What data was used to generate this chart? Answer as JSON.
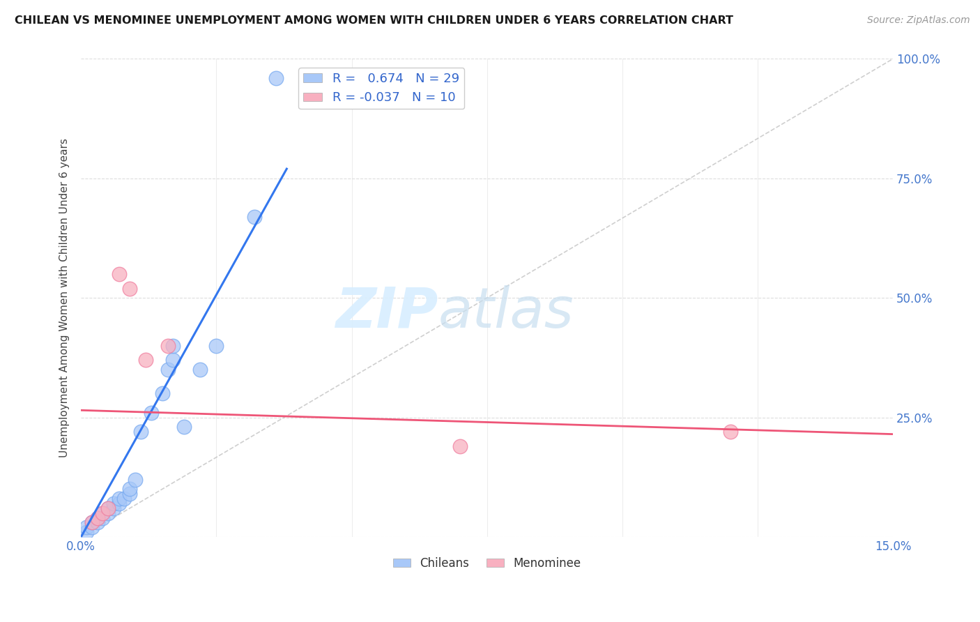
{
  "title": "CHILEAN VS MENOMINEE UNEMPLOYMENT AMONG WOMEN WITH CHILDREN UNDER 6 YEARS CORRELATION CHART",
  "source": "Source: ZipAtlas.com",
  "ylabel": "Unemployment Among Women with Children Under 6 years",
  "xlim": [
    0.0,
    0.15
  ],
  "ylim": [
    0.0,
    1.0
  ],
  "xticks": [
    0.0,
    0.025,
    0.05,
    0.075,
    0.1,
    0.125,
    0.15
  ],
  "xtick_labels": [
    "0.0%",
    "",
    "",
    "",
    "",
    "",
    "15.0%"
  ],
  "yticks": [
    0.0,
    0.25,
    0.5,
    0.75,
    1.0
  ],
  "ytick_labels_left": [
    "",
    "",
    "",
    "",
    ""
  ],
  "ytick_labels_right": [
    "",
    "25.0%",
    "50.0%",
    "75.0%",
    "100.0%"
  ],
  "chilean_r": 0.674,
  "chilean_n": 29,
  "menominee_r": -0.037,
  "menominee_n": 10,
  "chilean_color": "#a8c8f8",
  "menominee_color": "#f8b0c0",
  "chilean_edge_color": "#7aabf0",
  "menominee_edge_color": "#f080a0",
  "chilean_line_color": "#3377ee",
  "menominee_line_color": "#ee5577",
  "diag_color": "#bbbbbb",
  "grid_color": "#dddddd",
  "watermark": "ZIPatlas",
  "watermark_color": "#d8eeff",
  "chilean_x": [
    0.001,
    0.001,
    0.002,
    0.002,
    0.003,
    0.003,
    0.004,
    0.004,
    0.005,
    0.005,
    0.006,
    0.006,
    0.007,
    0.007,
    0.008,
    0.009,
    0.009,
    0.01,
    0.011,
    0.013,
    0.015,
    0.016,
    0.017,
    0.017,
    0.019,
    0.022,
    0.025,
    0.032,
    0.036
  ],
  "chilean_y": [
    0.01,
    0.02,
    0.02,
    0.03,
    0.03,
    0.04,
    0.04,
    0.05,
    0.05,
    0.06,
    0.06,
    0.07,
    0.07,
    0.08,
    0.08,
    0.09,
    0.1,
    0.12,
    0.22,
    0.26,
    0.3,
    0.35,
    0.37,
    0.4,
    0.23,
    0.35,
    0.4,
    0.67,
    0.96
  ],
  "menominee_x": [
    0.002,
    0.003,
    0.004,
    0.005,
    0.007,
    0.009,
    0.012,
    0.016,
    0.07,
    0.12
  ],
  "menominee_y": [
    0.03,
    0.04,
    0.05,
    0.06,
    0.55,
    0.52,
    0.37,
    0.4,
    0.19,
    0.22
  ],
  "chilean_trendline_x": [
    0.0,
    0.038
  ],
  "chilean_trendline_y": [
    0.0,
    0.77
  ],
  "menominee_trendline_x": [
    0.0,
    0.15
  ],
  "menominee_trendline_y": [
    0.265,
    0.215
  ]
}
